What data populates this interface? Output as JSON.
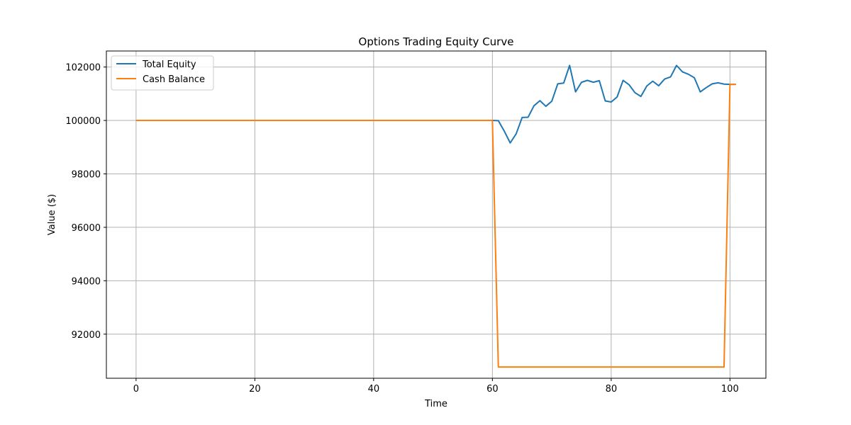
{
  "chart_data": {
    "type": "line",
    "title": "Options Trading Equity Curve",
    "xlabel": "Time",
    "ylabel": "Value ($)",
    "xlim": [
      -5,
      106.05
    ],
    "ylim": [
      90350,
      102600
    ],
    "xticks": [
      0,
      20,
      40,
      60,
      80,
      100
    ],
    "yticks": [
      92000,
      94000,
      96000,
      98000,
      100000,
      102000
    ],
    "grid": true,
    "legend_position": "upper-left",
    "series": [
      {
        "name": "Total Equity",
        "color": "#1f77b4",
        "x": [
          0,
          60,
          61,
          62,
          63,
          64,
          65,
          66,
          67,
          68,
          69,
          70,
          71,
          72,
          73,
          74,
          75,
          76,
          77,
          78,
          79,
          80,
          81,
          82,
          83,
          84,
          85,
          86,
          87,
          88,
          89,
          90,
          91,
          92,
          93,
          94,
          95,
          96,
          97,
          98,
          99,
          100,
          101
        ],
        "y": [
          100000,
          100000,
          99990,
          99600,
          99160,
          99500,
          100110,
          100120,
          100550,
          100740,
          100530,
          100720,
          101370,
          101400,
          102060,
          101070,
          101430,
          101500,
          101430,
          101490,
          100730,
          100690,
          100880,
          101500,
          101340,
          101040,
          100900,
          101290,
          101470,
          101300,
          101550,
          101630,
          102060,
          101820,
          101730,
          101600,
          101070,
          101230,
          101370,
          101410,
          101360,
          101350,
          101350
        ]
      },
      {
        "name": "Cash Balance",
        "color": "#ff7f0e",
        "x": [
          0,
          60,
          61,
          99,
          100,
          101
        ],
        "y": [
          100000,
          100000,
          90770,
          90770,
          101350,
          101350
        ]
      }
    ]
  }
}
